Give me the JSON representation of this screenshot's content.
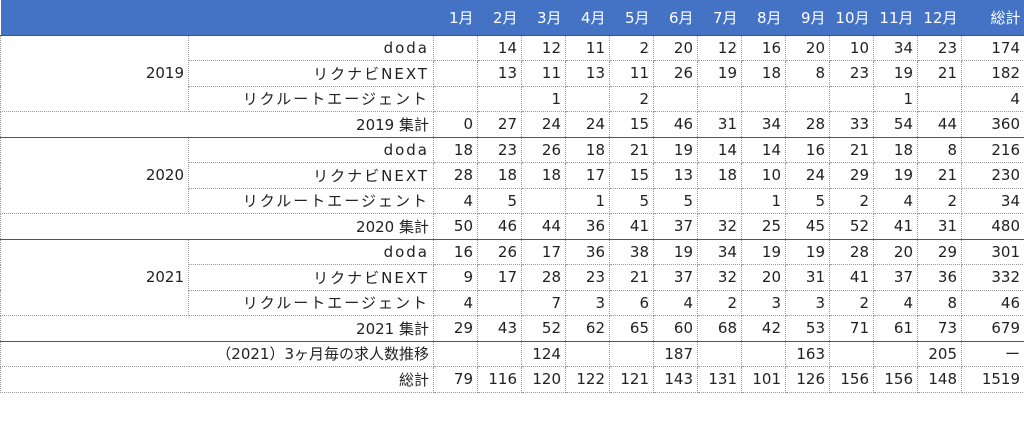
{
  "header": {
    "months": [
      "1月",
      "2月",
      "3月",
      "4月",
      "5月",
      "6月",
      "7月",
      "8月",
      "9月",
      "10月",
      "11月",
      "12月"
    ],
    "total": "総計"
  },
  "years": [
    {
      "year": "2019",
      "rows": [
        {
          "label": "doda",
          "values": [
            null,
            14,
            12,
            11,
            2,
            20,
            12,
            16,
            20,
            10,
            34,
            23
          ],
          "total": 174
        },
        {
          "label": "リクナビNEXT",
          "values": [
            null,
            13,
            11,
            13,
            11,
            26,
            19,
            18,
            8,
            23,
            19,
            21
          ],
          "total": 182
        },
        {
          "label": "リクルートエージェント",
          "values": [
            null,
            null,
            1,
            null,
            2,
            null,
            null,
            null,
            null,
            null,
            1,
            null
          ],
          "total": 4
        }
      ],
      "subtotal": {
        "label": "2019 集計",
        "values": [
          0,
          27,
          24,
          24,
          15,
          46,
          31,
          34,
          28,
          33,
          54,
          44
        ],
        "total": 360
      }
    },
    {
      "year": "2020",
      "rows": [
        {
          "label": "doda",
          "values": [
            18,
            23,
            26,
            18,
            21,
            19,
            14,
            14,
            16,
            21,
            18,
            8
          ],
          "total": 216
        },
        {
          "label": "リクナビNEXT",
          "values": [
            28,
            18,
            18,
            17,
            15,
            13,
            18,
            10,
            24,
            29,
            19,
            21
          ],
          "total": 230
        },
        {
          "label": "リクルートエージェント",
          "values": [
            4,
            5,
            null,
            1,
            5,
            5,
            null,
            1,
            5,
            2,
            4,
            2
          ],
          "total": 34
        }
      ],
      "subtotal": {
        "label": "2020 集計",
        "values": [
          50,
          46,
          44,
          36,
          41,
          37,
          32,
          25,
          45,
          52,
          41,
          31
        ],
        "total": 480
      }
    },
    {
      "year": "2021",
      "rows": [
        {
          "label": "doda",
          "values": [
            16,
            26,
            17,
            36,
            38,
            19,
            34,
            19,
            19,
            28,
            20,
            29
          ],
          "total": 301
        },
        {
          "label": "リクナビNEXT",
          "values": [
            9,
            17,
            28,
            23,
            21,
            37,
            32,
            20,
            31,
            41,
            37,
            36
          ],
          "total": 332
        },
        {
          "label": "リクルートエージェント",
          "values": [
            4,
            null,
            7,
            3,
            6,
            4,
            2,
            3,
            3,
            2,
            4,
            8
          ],
          "total": 46
        }
      ],
      "subtotal": {
        "label": "2021 集計",
        "values": [
          29,
          43,
          52,
          62,
          65,
          60,
          68,
          42,
          53,
          71,
          61,
          73
        ],
        "total": 679
      }
    }
  ],
  "trend": {
    "label": "（2021）3ヶ月毎の求人数推移",
    "values": [
      null,
      null,
      124,
      null,
      null,
      187,
      null,
      null,
      163,
      null,
      null,
      205
    ],
    "total": "ー"
  },
  "grand_total": {
    "label": "総計",
    "values": [
      79,
      116,
      120,
      122,
      121,
      143,
      131,
      101,
      126,
      156,
      156,
      148
    ],
    "total": 1519
  }
}
